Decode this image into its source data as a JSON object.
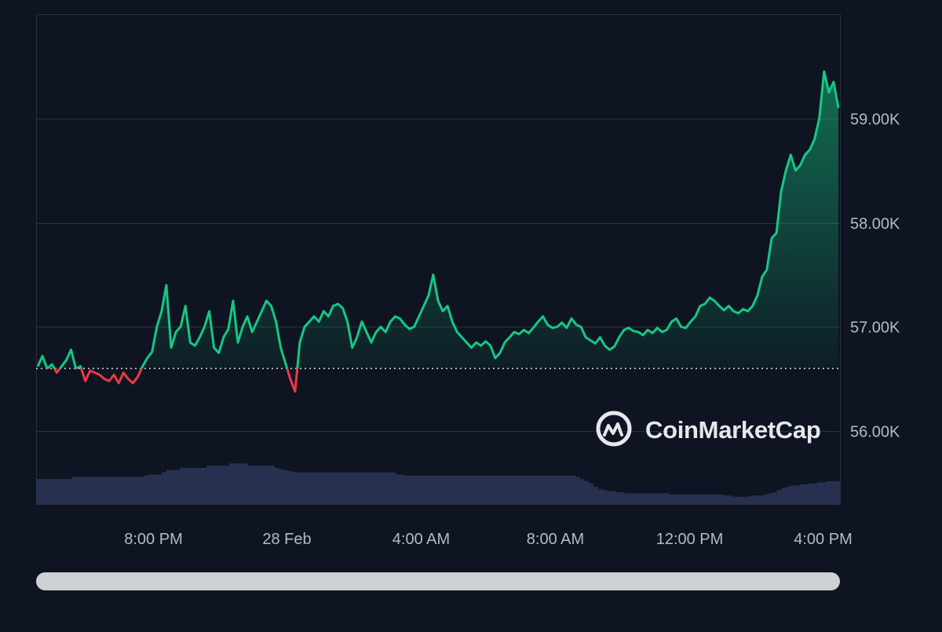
{
  "chart_data": {
    "type": "line",
    "x_tick_labels": [
      "8:00 PM",
      "28 Feb",
      "4:00 AM",
      "8:00 AM",
      "12:00 PM",
      "4:00 PM"
    ],
    "y_tick_labels": [
      "59.00K",
      "58.00K",
      "57.00K",
      "56.00K"
    ],
    "y_ticks": [
      59000,
      58000,
      57000,
      56000
    ],
    "ylim": [
      55300,
      60000
    ],
    "baseline": 56600,
    "price_series": {
      "name": "Price",
      "values": [
        56620,
        56720,
        56600,
        56640,
        56560,
        56620,
        56680,
        56780,
        56600,
        56620,
        56480,
        56580,
        56560,
        56540,
        56500,
        56480,
        56540,
        56460,
        56560,
        56500,
        56460,
        56520,
        56620,
        56700,
        56760,
        57000,
        57150,
        57400,
        56800,
        56950,
        57000,
        57200,
        56850,
        56820,
        56900,
        57000,
        57150,
        56800,
        56750,
        56900,
        56980,
        57250,
        56850,
        57000,
        57100,
        56950,
        57050,
        57150,
        57250,
        57200,
        57050,
        56800,
        56650,
        56500,
        56380,
        56850,
        57000,
        57050,
        57100,
        57050,
        57150,
        57100,
        57200,
        57220,
        57180,
        57050,
        56800,
        56900,
        57050,
        56950,
        56850,
        56950,
        57000,
        56950,
        57050,
        57100,
        57080,
        57020,
        56980,
        57000,
        57100,
        57200,
        57300,
        57500,
        57250,
        57150,
        57200,
        57050,
        56950,
        56900,
        56850,
        56800,
        56850,
        56820,
        56860,
        56820,
        56700,
        56750,
        56850,
        56900,
        56950,
        56930,
        56970,
        56940,
        56990,
        57050,
        57100,
        57020,
        56990,
        57000,
        57040,
        56990,
        57080,
        57020,
        57000,
        56900,
        56870,
        56840,
        56900,
        56820,
        56780,
        56810,
        56900,
        56970,
        56990,
        56960,
        56950,
        56920,
        56970,
        56940,
        56990,
        56950,
        56970,
        57050,
        57080,
        57000,
        56990,
        57050,
        57100,
        57200,
        57220,
        57280,
        57250,
        57200,
        57160,
        57200,
        57150,
        57130,
        57170,
        57150,
        57200,
        57300,
        57480,
        57550,
        57850,
        57900,
        58300,
        58500,
        58650,
        58500,
        58550,
        58650,
        58700,
        58800,
        59000,
        59450,
        59250,
        59350,
        59100
      ]
    },
    "volume_series": {
      "name": "Volume",
      "values": [
        0.78,
        0.78,
        0.78,
        0.78,
        0.78,
        0.78,
        0.78,
        0.78,
        0.79,
        0.79,
        0.79,
        0.79,
        0.79,
        0.79,
        0.79,
        0.79,
        0.79,
        0.79,
        0.79,
        0.79,
        0.79,
        0.79,
        0.79,
        0.79,
        0.795,
        0.8,
        0.8,
        0.8,
        0.81,
        0.82,
        0.82,
        0.82,
        0.83,
        0.83,
        0.83,
        0.83,
        0.83,
        0.83,
        0.84,
        0.84,
        0.84,
        0.84,
        0.84,
        0.85,
        0.85,
        0.85,
        0.85,
        0.84,
        0.84,
        0.84,
        0.84,
        0.84,
        0.84,
        0.83,
        0.825,
        0.82,
        0.815,
        0.81,
        0.81,
        0.81,
        0.81,
        0.81,
        0.81,
        0.81,
        0.81,
        0.81,
        0.81,
        0.81,
        0.81,
        0.81,
        0.81,
        0.81,
        0.81,
        0.81,
        0.81,
        0.81,
        0.81,
        0.81,
        0.81,
        0.81,
        0.8,
        0.8,
        0.795,
        0.795,
        0.795,
        0.795,
        0.795,
        0.795,
        0.795,
        0.795,
        0.795,
        0.795,
        0.795,
        0.795,
        0.795,
        0.795,
        0.795,
        0.795,
        0.795,
        0.795,
        0.795,
        0.795,
        0.795,
        0.795,
        0.795,
        0.795,
        0.795,
        0.795,
        0.795,
        0.795,
        0.795,
        0.795,
        0.795,
        0.795,
        0.795,
        0.795,
        0.795,
        0.795,
        0.795,
        0.795,
        0.79,
        0.78,
        0.77,
        0.76,
        0.745,
        0.735,
        0.73,
        0.725,
        0.725,
        0.72,
        0.72,
        0.715,
        0.715,
        0.715,
        0.715,
        0.715,
        0.715,
        0.715,
        0.715,
        0.715,
        0.715,
        0.71,
        0.71,
        0.71,
        0.71,
        0.71,
        0.71,
        0.71,
        0.71,
        0.71,
        0.71,
        0.71,
        0.71,
        0.705,
        0.705,
        0.7,
        0.7,
        0.7,
        0.7,
        0.705,
        0.705,
        0.705,
        0.71,
        0.715,
        0.72,
        0.73,
        0.74,
        0.745,
        0.75,
        0.75,
        0.755,
        0.755,
        0.76,
        0.76,
        0.765,
        0.765,
        0.77,
        0.77,
        0.77
      ]
    },
    "colors": {
      "up": "#16c784",
      "down": "#ea3943",
      "volume": "#27314f",
      "grid": "#2b3140",
      "background": "#0e1421"
    },
    "watermark_text": "CoinMarketCap"
  },
  "scrollbar": {
    "position": 0,
    "visible_fraction": 1.0
  }
}
